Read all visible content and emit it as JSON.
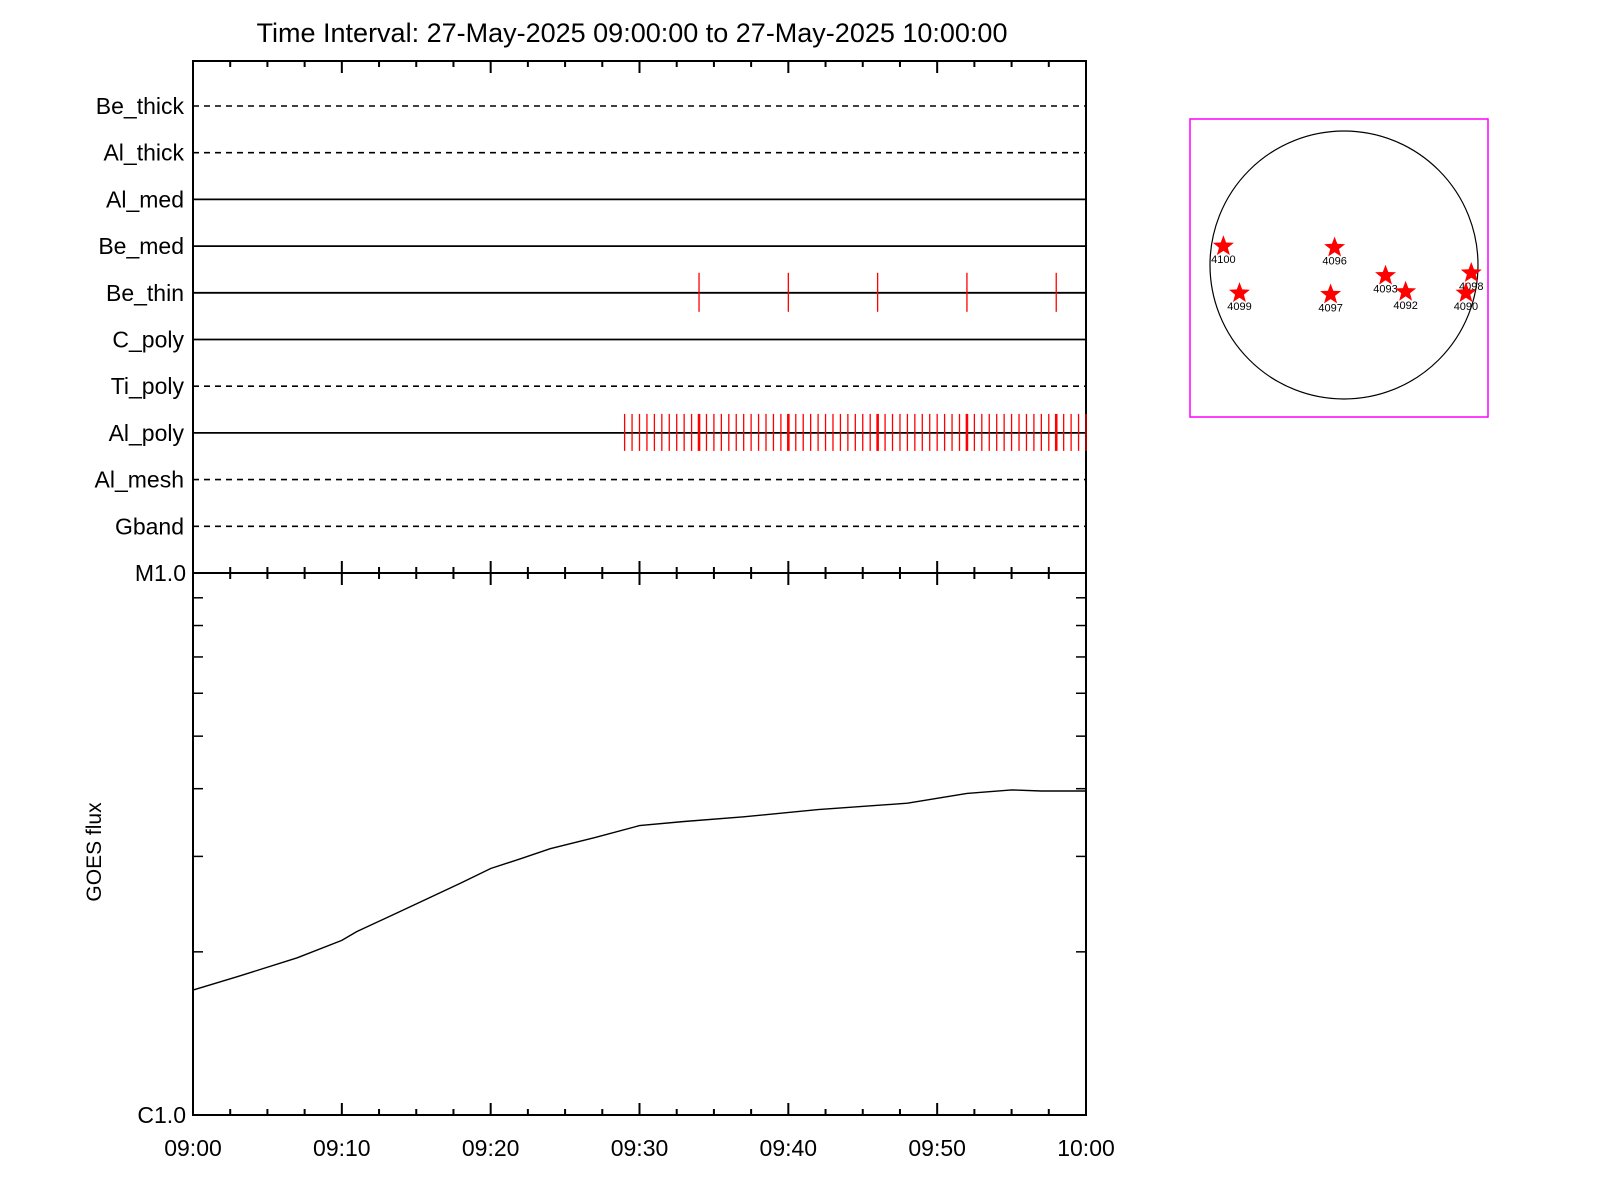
{
  "chart_data": [
    {
      "type": "timeline",
      "title": "Time Interval: 27-May-2025 09:00:00 to 27-May-2025 10:00:00",
      "x_range": [
        "09:00",
        "10:00"
      ],
      "channels": [
        {
          "name": "Be_thick",
          "style": "dashed",
          "events_min": []
        },
        {
          "name": "Al_thick",
          "style": "dashed",
          "events_min": []
        },
        {
          "name": "Al_med",
          "style": "solid",
          "events_min": []
        },
        {
          "name": "Be_med",
          "style": "solid",
          "events_min": []
        },
        {
          "name": "Be_thin",
          "style": "solid",
          "events_min": [
            34,
            40,
            46,
            52,
            58
          ]
        },
        {
          "name": "C_poly",
          "style": "solid",
          "events_min": []
        },
        {
          "name": "Ti_poly",
          "style": "dashed",
          "events_min": []
        },
        {
          "name": "Al_poly",
          "style": "solid",
          "events_start_min": 29,
          "events_step_min": 0.5,
          "events_end_min": 60
        },
        {
          "name": "Al_mesh",
          "style": "dashed",
          "events_min": []
        },
        {
          "name": "Gband",
          "style": "dashed",
          "events_min": []
        }
      ],
      "event_color": "#ff0000"
    },
    {
      "type": "line",
      "ylabel": "GOES flux",
      "y_scale": "log",
      "y_ticks": [
        {
          "label": "C1.0",
          "value": 1e-06
        },
        {
          "label": "M1.0",
          "value": 1e-05
        }
      ],
      "ylim": [
        1e-06,
        1e-05
      ],
      "x_ticks": [
        "09:00",
        "09:10",
        "09:20",
        "09:30",
        "09:40",
        "09:50",
        "10:00"
      ],
      "xlim_min": [
        0,
        60
      ],
      "series": [
        {
          "x_min": [
            0,
            3,
            7,
            10,
            11,
            14,
            18,
            20,
            22,
            24,
            27,
            30,
            33,
            37,
            42,
            48,
            52,
            55,
            57,
            60
          ],
          "values": [
            1.7e-06,
            1.8e-06,
            1.95e-06,
            2.1e-06,
            2.18e-06,
            2.38e-06,
            2.68e-06,
            2.85e-06,
            2.97e-06,
            3.1e-06,
            3.25e-06,
            3.42e-06,
            3.48e-06,
            3.55e-06,
            3.66e-06,
            3.76e-06,
            3.92e-06,
            3.98e-06,
            3.96e-06,
            3.96e-06
          ]
        }
      ],
      "line_color": "#000000"
    },
    {
      "type": "scatter",
      "frame_color": "#ff00ff",
      "marker_color": "#ff0000",
      "disk_radius": 1.0,
      "points": [
        {
          "label": "4100",
          "x": -0.9,
          "y": 0.14
        },
        {
          "label": "4096",
          "x": -0.07,
          "y": 0.13
        },
        {
          "label": "4093",
          "x": 0.31,
          "y": -0.08
        },
        {
          "label": "4098",
          "x": 0.95,
          "y": -0.06
        },
        {
          "label": "4099",
          "x": -0.78,
          "y": -0.21
        },
        {
          "label": "4097",
          "x": -0.1,
          "y": -0.22
        },
        {
          "label": "4092",
          "x": 0.46,
          "y": -0.2
        },
        {
          "label": "4090",
          "x": 0.91,
          "y": -0.21
        }
      ]
    }
  ]
}
